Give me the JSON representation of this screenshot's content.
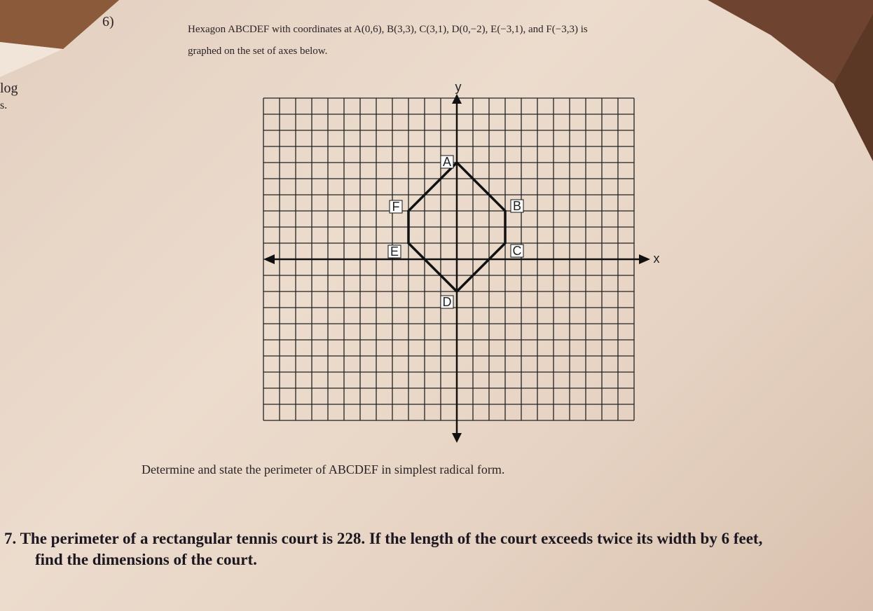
{
  "problem6": {
    "number": "6)",
    "statement": [
      "Hexagon ABCDEF with coordinates at A(0,6), B(3,3), C(3,1), D(0,−2), E(−3,1), and F(−3,3) is",
      "graphed on the set of axes below."
    ],
    "graph": {
      "y_label": "y",
      "x_label": "x",
      "vertices": [
        "A",
        "B",
        "C",
        "D",
        "E",
        "F"
      ]
    },
    "question": "Determine and state the perimeter of ABCDEF in simplest radical form."
  },
  "problem7": {
    "lines": [
      "7. The perimeter of a rectangular tennis court is 228.  If the length of the court exceeds twice its width by 6 feet,",
      "find the dimensions of the court."
    ]
  },
  "margin_text": [
    "log",
    "s."
  ]
}
